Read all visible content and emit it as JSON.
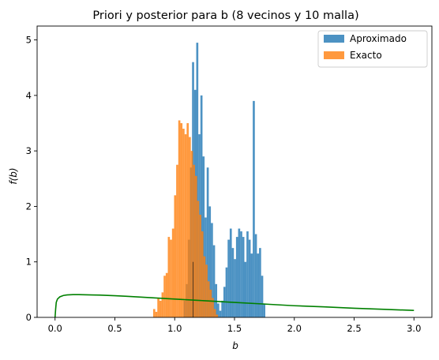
{
  "chart_data": {
    "type": "bar",
    "title": "Priori y posterior para b (8 vecinos y 10 malla)",
    "xlabel": "b",
    "ylabel": "f(b)",
    "xlim": [
      -0.15,
      3.15
    ],
    "ylim": [
      0,
      5.25
    ],
    "xticks": [
      "0.0",
      "0.5",
      "1.0",
      "1.5",
      "2.0",
      "2.5",
      "3.0"
    ],
    "yticks": [
      "0",
      "1",
      "2",
      "3",
      "4",
      "5"
    ],
    "grid": false,
    "legend_position": "top-right",
    "bin_width": 0.0175,
    "series": [
      {
        "name": "Aproximado",
        "color": "#1f77b4",
        "bin_start": 1.075,
        "values": [
          0.3,
          0.6,
          1.4,
          2.7,
          4.6,
          4.1,
          4.95,
          3.3,
          4.0,
          2.9,
          1.8,
          2.7,
          2.0,
          1.7,
          1.3,
          0.6,
          0.25,
          0.12,
          0.3,
          0.55,
          0.9,
          1.4,
          1.6,
          1.25,
          1.05,
          1.45,
          1.6,
          1.55,
          1.45,
          1.0,
          1.55,
          1.4,
          1.15,
          3.9,
          1.5,
          1.15,
          1.25,
          0.75,
          0.25
        ]
      },
      {
        "name": "Exacto",
        "color": "#ff7f0e",
        "bin_start": 0.82,
        "values": [
          0.15,
          0.1,
          0.35,
          0.3,
          0.45,
          0.75,
          0.8,
          1.45,
          1.4,
          1.6,
          2.2,
          2.75,
          3.55,
          3.5,
          3.4,
          3.3,
          3.5,
          3.25,
          3.0,
          2.75,
          2.55,
          2.1,
          1.85,
          1.55,
          1.1,
          0.95,
          0.65,
          0.5,
          0.35,
          0.15,
          0.05
        ]
      },
      {
        "name": "Priori",
        "type": "line",
        "color": "#008000",
        "x": [
          0.0,
          0.005,
          0.01,
          0.02,
          0.04,
          0.07,
          0.1,
          0.15,
          0.2,
          0.3,
          0.4,
          0.5,
          0.6,
          0.8,
          1.0,
          1.25,
          1.5,
          1.75,
          2.0,
          2.25,
          2.5,
          2.75,
          3.0
        ],
        "y": [
          0.0,
          0.15,
          0.27,
          0.33,
          0.37,
          0.395,
          0.405,
          0.41,
          0.41,
          0.405,
          0.4,
          0.39,
          0.38,
          0.355,
          0.33,
          0.3,
          0.27,
          0.24,
          0.21,
          0.19,
          0.165,
          0.145,
          0.125
        ]
      }
    ],
    "reference_line": {
      "x": 1.155,
      "y_max": 1.0,
      "color": "#000000"
    }
  }
}
